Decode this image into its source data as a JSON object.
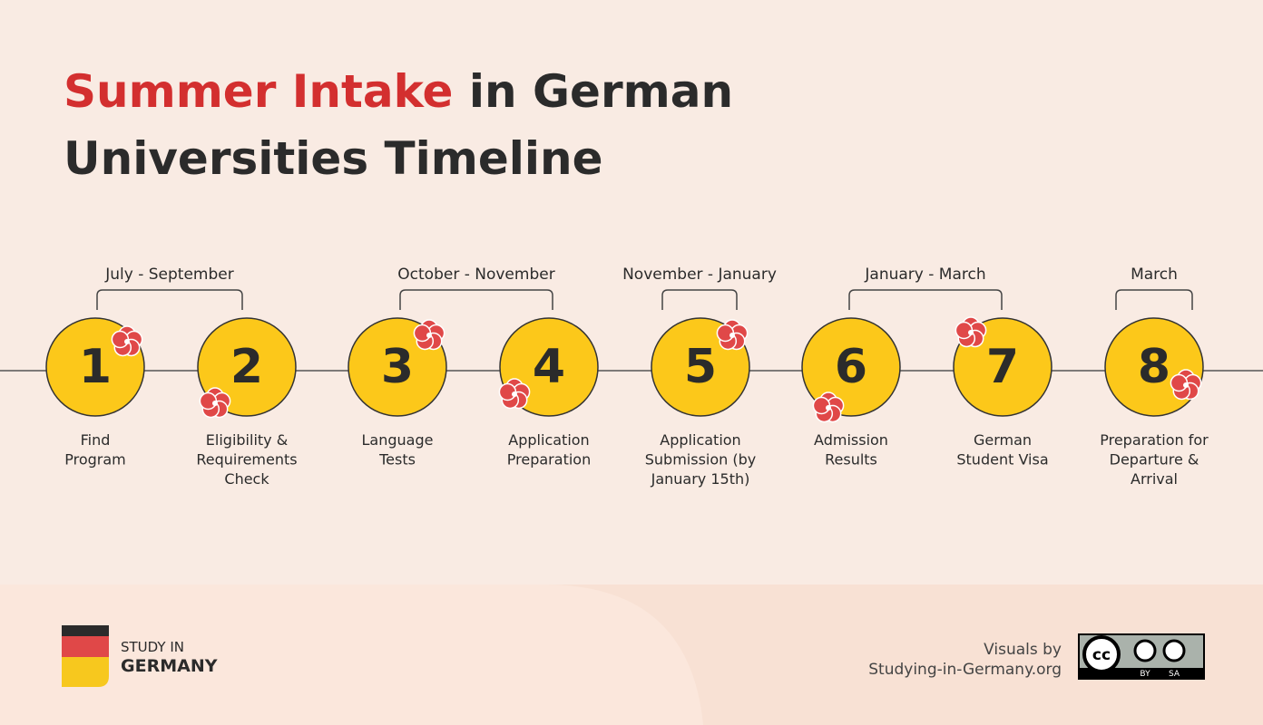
{
  "title": {
    "highlight": "Summer Intake",
    "line1_rest": "in German",
    "line2": "Universities Timeline"
  },
  "periods": [
    "July - September",
    "October - November",
    "November - January",
    "January - March",
    "March"
  ],
  "steps": [
    {
      "number": "1",
      "lines": [
        "Find",
        "Program"
      ]
    },
    {
      "number": "2",
      "lines": [
        "Eligibility &",
        "Requirements",
        "Check"
      ]
    },
    {
      "number": "3",
      "lines": [
        "Language",
        "Tests"
      ]
    },
    {
      "number": "4",
      "lines": [
        "Application",
        "Preparation"
      ]
    },
    {
      "number": "5",
      "lines": [
        "Application",
        "Submission (by",
        "January 15th)"
      ]
    },
    {
      "number": "6",
      "lines": [
        "Admission",
        "Results"
      ]
    },
    {
      "number": "7",
      "lines": [
        "German",
        "Student Visa"
      ]
    },
    {
      "number": "8",
      "lines": [
        "Preparation for",
        "Departure &",
        "Arrival"
      ]
    }
  ],
  "footer": {
    "logo_line1": "STUDY IN",
    "logo_line2": "GERMANY",
    "credit_line1": "Visuals by",
    "credit_line2": "Studying-in-Germany.org",
    "badge": {
      "cc": "cc",
      "by": "BY",
      "sa": "SA"
    }
  }
}
